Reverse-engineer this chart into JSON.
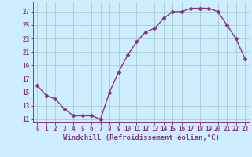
{
  "x": [
    0,
    1,
    2,
    3,
    4,
    5,
    6,
    7,
    8,
    9,
    10,
    11,
    12,
    13,
    14,
    15,
    16,
    17,
    18,
    19,
    20,
    21,
    22,
    23
  ],
  "y": [
    16.0,
    14.5,
    14.0,
    12.5,
    11.5,
    11.5,
    11.5,
    11.0,
    15.0,
    18.0,
    20.5,
    22.5,
    24.0,
    24.5,
    26.0,
    27.0,
    27.0,
    27.5,
    27.5,
    27.5,
    27.0,
    25.0,
    23.0,
    20.0
  ],
  "line_color": "#883388",
  "marker": "D",
  "marker_size": 2.5,
  "line_width": 1.0,
  "bg_color": "#cceeff",
  "grid_color": "#aacccc",
  "xlabel": "Windchill (Refroidissement éolien,°C)",
  "ylim": [
    10.5,
    28.5
  ],
  "yticks": [
    11,
    13,
    15,
    17,
    19,
    21,
    23,
    25,
    27
  ],
  "xlim": [
    -0.5,
    23.5
  ],
  "xticks": [
    0,
    1,
    2,
    3,
    4,
    5,
    6,
    7,
    8,
    9,
    10,
    11,
    12,
    13,
    14,
    15,
    16,
    17,
    18,
    19,
    20,
    21,
    22,
    23
  ],
  "tick_fontsize": 5.5,
  "xlabel_fontsize": 6.5
}
